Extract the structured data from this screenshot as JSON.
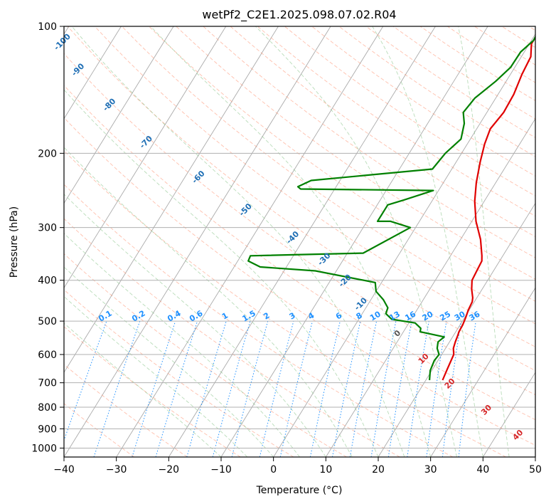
{
  "chart_data": {
    "type": "line",
    "title": "wetPf2_C2E1.2025.098.07.02.R04",
    "xlabel": "Temperature (°C)",
    "ylabel": "Pressure (hPa)",
    "xlim": [
      -40,
      50
    ],
    "ylim": [
      1050,
      100
    ],
    "y_scale": "log",
    "x_ticks": [
      -40,
      -30,
      -20,
      -10,
      0,
      10,
      20,
      30,
      40,
      50
    ],
    "x_tick_labels": [
      "−40",
      "−30",
      "−20",
      "−10",
      "0",
      "10",
      "20",
      "30",
      "40",
      "50"
    ],
    "y_ticks": [
      100,
      200,
      300,
      400,
      500,
      600,
      700,
      800,
      900,
      1000
    ],
    "y_tick_labels": [
      "100",
      "200",
      "300",
      "400",
      "500",
      "600",
      "700",
      "800",
      "900",
      "1000"
    ],
    "grid": true,
    "colors": {
      "temperature": "#e00000",
      "dewpoint": "#008000",
      "isotherm": "#aaaaaa",
      "dry_adiabat": "#ff8c69",
      "moist_adiabat": "#7fbf7f",
      "mixing_ratio": "#1e90ff",
      "pressure_grid": "#b0b0b0"
    },
    "series": [
      {
        "key": "temperature",
        "x": [
          23.2,
          22.8,
          22.3,
          21.5,
          21.1,
          20.8,
          20.6,
          20.5,
          20.2,
          19.8,
          19.6,
          19.2,
          18.0,
          17.0,
          16.8,
          16.6,
          16.0,
          13.8,
          10.8,
          8.2,
          6.3,
          4.6,
          3.3,
          2.6,
          3.2,
          3.0,
          2.2,
          1.8,
          0.4,
          0.4,
          1.1,
          2.4,
          3.6
        ],
        "y": [
          690,
          650,
          600,
          580,
          560,
          540,
          530,
          510,
          490,
          470,
          450,
          440,
          420,
          400,
          380,
          360,
          350,
          320,
          290,
          260,
          235,
          210,
          190,
          175,
          160,
          145,
          130,
          118,
          110,
          105,
          102,
          100,
          98
        ]
      },
      {
        "key": "dewpoint",
        "x": [
          20.7,
          19.7,
          19.3,
          19.5,
          18.4,
          17.8,
          18.4,
          13.2,
          12.9,
          11.2,
          6.3,
          4.5,
          4.2,
          2.4,
          0.0,
          -1.2,
          -14.0,
          -25.0,
          -28.0,
          -28.2,
          -7.0,
          -1.0,
          -5.5,
          -8.0,
          -8.0,
          -5.5,
          -1.0,
          -26.5,
          -27.3,
          -25.5,
          -3.7,
          -3.1,
          -1.8,
          -3.0,
          -4.5,
          -4.0,
          -2.0,
          -0.8,
          -0.7,
          0.4,
          0.2,
          0.4
        ],
        "y": [
          690,
          655,
          620,
          600,
          580,
          560,
          545,
          530,
          520,
          505,
          495,
          480,
          465,
          445,
          425,
          405,
          380,
          372,
          360,
          350,
          345,
          300,
          290,
          290,
          265,
          258,
          245,
          243,
          240,
          232,
          218,
          200,
          185,
          170,
          160,
          148,
          135,
          125,
          115,
          108,
          102,
          98
        ]
      }
    ],
    "dry_adiabat_labels": [
      {
        "text": "-100",
        "x": -40,
        "y": 110
      },
      {
        "text": "-90",
        "x": -37,
        "y": 128
      },
      {
        "text": "-80",
        "x": -31,
        "y": 155
      },
      {
        "text": "-70",
        "x": -24,
        "y": 190
      },
      {
        "text": "-60",
        "x": -14,
        "y": 230
      },
      {
        "text": "-50",
        "x": -5,
        "y": 275
      },
      {
        "text": "-40",
        "x": 4,
        "y": 320
      },
      {
        "text": "-30",
        "x": 10,
        "y": 360
      },
      {
        "text": "-20",
        "x": 14,
        "y": 405
      },
      {
        "text": "-10",
        "x": 17,
        "y": 460
      },
      {
        "text": "0",
        "x": 24,
        "y": 540
      },
      {
        "text": "10",
        "x": 29,
        "y": 620
      },
      {
        "text": "20",
        "x": 34,
        "y": 710
      },
      {
        "text": "30",
        "x": 41,
        "y": 820
      },
      {
        "text": "40",
        "x": 47,
        "y": 940
      }
    ],
    "mixing_ratio_labels": [
      "0.1",
      "0.2",
      "0.4",
      "0.6",
      "1",
      "1.5",
      "2",
      "3",
      "4",
      "6",
      "8",
      "10",
      "13",
      "16",
      "20",
      "25",
      "30",
      "36"
    ]
  }
}
